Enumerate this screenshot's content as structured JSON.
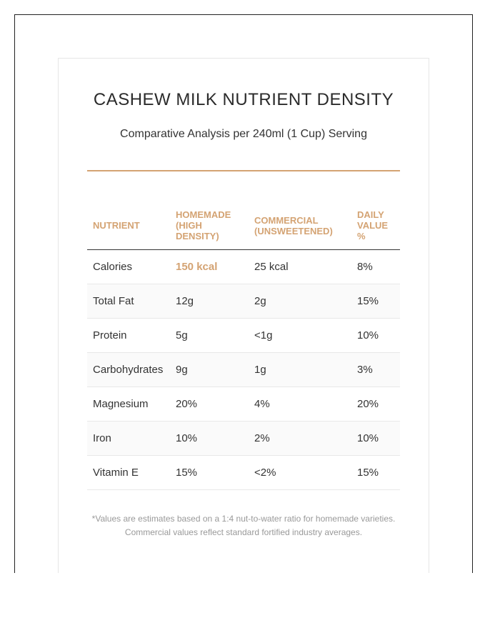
{
  "title": "CASHEW MILK NUTRIENT DENSITY",
  "subtitle": "Comparative Analysis per 240ml (1 Cup) Serving",
  "accent_color": "#d4a373",
  "table": {
    "headers": [
      "NUTRIENT",
      "HOMEMADE (HIGH DENSITY)",
      "COMMERCIAL (UNSWEETENED)",
      "DAILY VALUE %"
    ],
    "rows": [
      [
        "Calories",
        "150 kcal",
        "25 kcal",
        "8%"
      ],
      [
        "Total Fat",
        "12g",
        "2g",
        "15%"
      ],
      [
        "Protein",
        "5g",
        "<1g",
        "10%"
      ],
      [
        "Carbohydrates",
        "9g",
        "1g",
        "3%"
      ],
      [
        "Magnesium",
        "20%",
        "4%",
        "20%"
      ],
      [
        "Iron",
        "10%",
        "2%",
        "10%"
      ],
      [
        "Vitamin E",
        "15%",
        "<2%",
        "15%"
      ]
    ]
  },
  "footnote": {
    "line1": "*Values are estimates based on a 1:4 nut-to-water ratio for homemade varieties.",
    "line2": "Commercial values reflect standard fortified industry averages."
  }
}
